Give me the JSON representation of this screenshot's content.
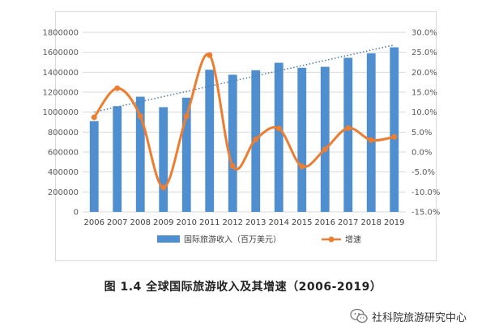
{
  "caption": "图 1.4 全球国际旅游收入及其增速（2006-2019）",
  "watermark": {
    "text": "社科院旅游研究中心",
    "icon": "wechat-official-account-icon"
  },
  "chart_data": {
    "type": "bar+line",
    "categories": [
      "2006",
      "2007",
      "2008",
      "2009",
      "2010",
      "2011",
      "2012",
      "2013",
      "2014",
      "2015",
      "2016",
      "2017",
      "2018",
      "2019"
    ],
    "series": [
      {
        "name": "国际旅游收入（百万美元）",
        "type": "bar",
        "axis": "left",
        "color": "#4f8fcf",
        "values": [
          910000,
          1060000,
          1155000,
          1050000,
          1145000,
          1425000,
          1375000,
          1420000,
          1495000,
          1445000,
          1455000,
          1545000,
          1590000,
          1650000
        ]
      },
      {
        "name": "增速",
        "type": "line",
        "axis": "right",
        "color": "#ed7d31",
        "values": [
          8.7,
          16.0,
          9.0,
          -8.9,
          9.0,
          24.3,
          -3.5,
          3.2,
          5.9,
          -3.6,
          0.7,
          6.0,
          3.0,
          3.8
        ]
      }
    ],
    "trendline": {
      "of": "国际旅游收入（百万美元）",
      "style": "dotted",
      "color": "#4f7fa8"
    },
    "y_left": {
      "min": 0,
      "max": 1800000,
      "ticks": [
        "0",
        "200000",
        "400000",
        "600000",
        "800000",
        "1000000",
        "1200000",
        "1400000",
        "1600000",
        "1800000"
      ]
    },
    "y_right": {
      "min": -15,
      "max": 30,
      "ticks": [
        "-15.0%",
        "-10.0%",
        "-5.0%",
        "0.0%",
        "5.0%",
        "10.0%",
        "15.0%",
        "20.0%",
        "25.0%",
        "30.0%"
      ]
    },
    "grid": true,
    "legend_position": "bottom"
  }
}
